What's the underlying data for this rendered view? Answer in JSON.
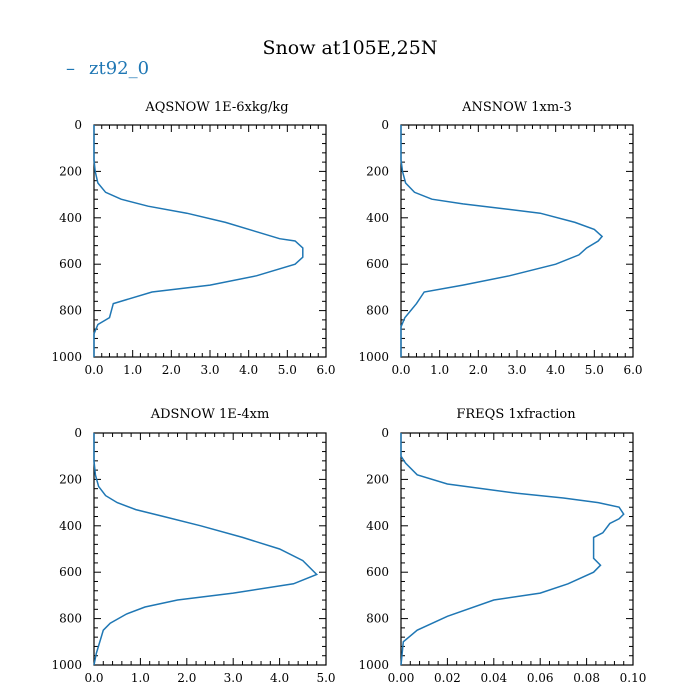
{
  "title": "Snow at105E,25N",
  "legend": {
    "label": "zt92_0",
    "marker": "–",
    "color": "#1f77b4"
  },
  "chart_data": [
    {
      "type": "line",
      "title": "AQSNOW  1E-6xkg/kg",
      "series_name": "zt92_0",
      "xlim": [
        0,
        6.0
      ],
      "ylim": [
        1000,
        0
      ],
      "xticks": [
        0,
        1,
        2,
        3,
        4,
        5,
        6
      ],
      "xtick_labels": [
        "0.0",
        "1.0",
        "2.0",
        "3.0",
        "4.0",
        "5.0",
        "6.0"
      ],
      "yticks": [
        0,
        200,
        400,
        600,
        800,
        1000
      ],
      "ytick_labels": [
        "0",
        "200",
        "400",
        "600",
        "800",
        "1000"
      ],
      "x": [
        0,
        0,
        0.03,
        0.1,
        0.3,
        0.7,
        1.4,
        2.4,
        3.4,
        4.2,
        4.8,
        5.2,
        5.4,
        5.4,
        5.2,
        4.2,
        3.0,
        1.5,
        0.5,
        0.4,
        0.1,
        0,
        0
      ],
      "y": [
        0,
        150,
        200,
        250,
        290,
        320,
        350,
        380,
        420,
        460,
        490,
        500,
        530,
        570,
        600,
        650,
        690,
        720,
        770,
        830,
        860,
        900,
        1000
      ]
    },
    {
      "type": "line",
      "title": "ANSNOW  1xm-3",
      "series_name": "zt92_0",
      "xlim": [
        0,
        6.0
      ],
      "ylim": [
        1000,
        0
      ],
      "xticks": [
        0,
        1,
        2,
        3,
        4,
        5,
        6
      ],
      "xtick_labels": [
        "0.0",
        "1.0",
        "2.0",
        "3.0",
        "4.0",
        "5.0",
        "6.0"
      ],
      "yticks": [
        0,
        200,
        400,
        600,
        800,
        1000
      ],
      "ytick_labels": [
        "0",
        "200",
        "400",
        "600",
        "800",
        "1000"
      ],
      "x": [
        0,
        0,
        0.04,
        0.12,
        0.35,
        0.8,
        1.6,
        2.6,
        3.6,
        4.5,
        5.0,
        5.2,
        5.1,
        4.8,
        4.6,
        4.0,
        2.8,
        1.6,
        0.6,
        0.4,
        0.1,
        0,
        0
      ],
      "y": [
        0,
        150,
        200,
        250,
        290,
        320,
        340,
        360,
        380,
        420,
        450,
        480,
        500,
        530,
        560,
        600,
        650,
        690,
        720,
        770,
        830,
        870,
        1000
      ]
    },
    {
      "type": "line",
      "title": "ADSNOW  1E-4xm",
      "series_name": "zt92_0",
      "xlim": [
        0,
        5.0
      ],
      "ylim": [
        1000,
        0
      ],
      "xticks": [
        0,
        1,
        2,
        3,
        4,
        5
      ],
      "xtick_labels": [
        "0.0",
        "1.0",
        "2.0",
        "3.0",
        "4.0",
        "5.0"
      ],
      "yticks": [
        0,
        200,
        400,
        600,
        800,
        1000
      ],
      "ytick_labels": [
        "0",
        "200",
        "400",
        "600",
        "800",
        "1000"
      ],
      "x": [
        0,
        0,
        0.03,
        0.1,
        0.25,
        0.5,
        0.9,
        1.5,
        2.3,
        3.2,
        4.0,
        4.5,
        4.8,
        4.3,
        3.0,
        1.8,
        1.1,
        0.7,
        0.35,
        0.2,
        0.05,
        0
      ],
      "y": [
        0,
        120,
        180,
        230,
        270,
        300,
        330,
        360,
        400,
        450,
        500,
        550,
        610,
        650,
        690,
        720,
        750,
        780,
        820,
        850,
        950,
        1000
      ]
    },
    {
      "type": "line",
      "title": "FREQS  1xfraction",
      "series_name": "zt92_0",
      "xlim": [
        0,
        0.1
      ],
      "ylim": [
        1000,
        0
      ],
      "xticks": [
        0,
        0.02,
        0.04,
        0.06,
        0.08,
        0.1
      ],
      "xtick_labels": [
        "0.00",
        "0.02",
        "0.04",
        "0.06",
        "0.08",
        "0.10"
      ],
      "yticks": [
        0,
        200,
        400,
        600,
        800,
        1000
      ],
      "ytick_labels": [
        "0",
        "200",
        "400",
        "600",
        "800",
        "1000"
      ],
      "x": [
        0,
        0,
        0.002,
        0.007,
        0.02,
        0.05,
        0.07,
        0.085,
        0.094,
        0.096,
        0.094,
        0.09,
        0.087,
        0.083,
        0.083,
        0.083,
        0.086,
        0.083,
        0.072,
        0.06,
        0.04,
        0.02,
        0.007,
        0.001,
        0
      ],
      "y": [
        0,
        100,
        130,
        180,
        220,
        260,
        280,
        300,
        320,
        350,
        370,
        390,
        430,
        450,
        500,
        540,
        570,
        600,
        650,
        690,
        720,
        790,
        850,
        900,
        1000
      ]
    }
  ]
}
